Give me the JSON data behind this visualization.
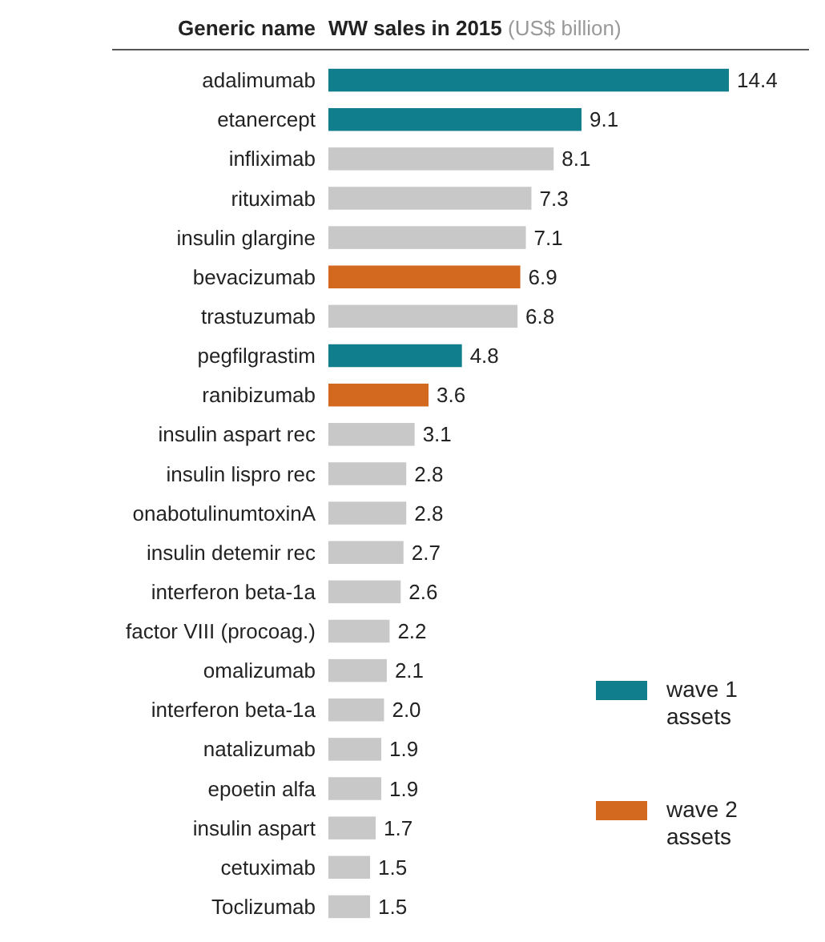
{
  "chart_data": {
    "type": "bar",
    "orientation": "horizontal",
    "title": "WW sales in 2015",
    "subtitle": "(US$ billion)",
    "ylabel": "Generic name",
    "legend": "bottom right",
    "categories": [
      "adalimumab",
      "etanercept",
      "infliximab",
      "rituximab",
      "insulin glargine",
      "bevacizumab",
      "trastuzumab",
      "pegfilgrastim",
      "ranibizumab",
      "insulin aspart rec",
      "insulin lispro rec",
      "onabotulinumtoxinA",
      "insulin detemir rec",
      "interferon beta-1a",
      "factor VIII (procoag.)",
      "omalizumab",
      "interferon beta-1a",
      "natalizumab",
      "epoetin alfa",
      "insulin aspart",
      "cetuximab",
      "Toclizumab"
    ],
    "series": [
      {
        "name": "wave 1 assets",
        "color": "#107e8c",
        "values": [
          14.4,
          9.1,
          null,
          null,
          null,
          null,
          null,
          4.8,
          null,
          null,
          null,
          null,
          null,
          null,
          null,
          null,
          null,
          null,
          null,
          null,
          null,
          null
        ],
        "value_labels": [
          "14.4",
          "9.1",
          null,
          null,
          null,
          null,
          null,
          "4.8",
          null,
          null,
          null,
          null,
          null,
          null,
          null,
          null,
          null,
          null,
          null,
          null,
          null,
          null
        ]
      },
      {
        "name": "wave 2 assets",
        "color": "#d2691f",
        "values": [
          null,
          null,
          null,
          null,
          null,
          6.9,
          null,
          null,
          3.6,
          null,
          null,
          null,
          null,
          null,
          null,
          null,
          null,
          null,
          null,
          null,
          null,
          null
        ],
        "value_labels": [
          null,
          null,
          null,
          null,
          null,
          "6.9",
          null,
          null,
          "3.6",
          null,
          null,
          null,
          null,
          null,
          null,
          null,
          null,
          null,
          null,
          null,
          null,
          null
        ]
      },
      {
        "color": "#c8c8c8",
        "values": [
          null,
          null,
          8.1,
          7.3,
          7.1,
          null,
          6.8,
          null,
          null,
          3.1,
          2.8,
          2.8,
          2.7,
          2.6,
          2.2,
          2.1,
          2.0,
          1.9,
          1.9,
          1.7,
          1.5,
          1.5
        ],
        "value_labels": [
          null,
          null,
          "8.1",
          "7.3",
          "7.1",
          null,
          "6.8",
          null,
          null,
          "3.1",
          "2.8",
          "2.8",
          "2.7",
          "2.6",
          "2.2",
          "2.1",
          "2.0",
          "1.9",
          "1.9",
          "1.7",
          "1.5",
          "1.5"
        ]
      }
    ]
  }
}
